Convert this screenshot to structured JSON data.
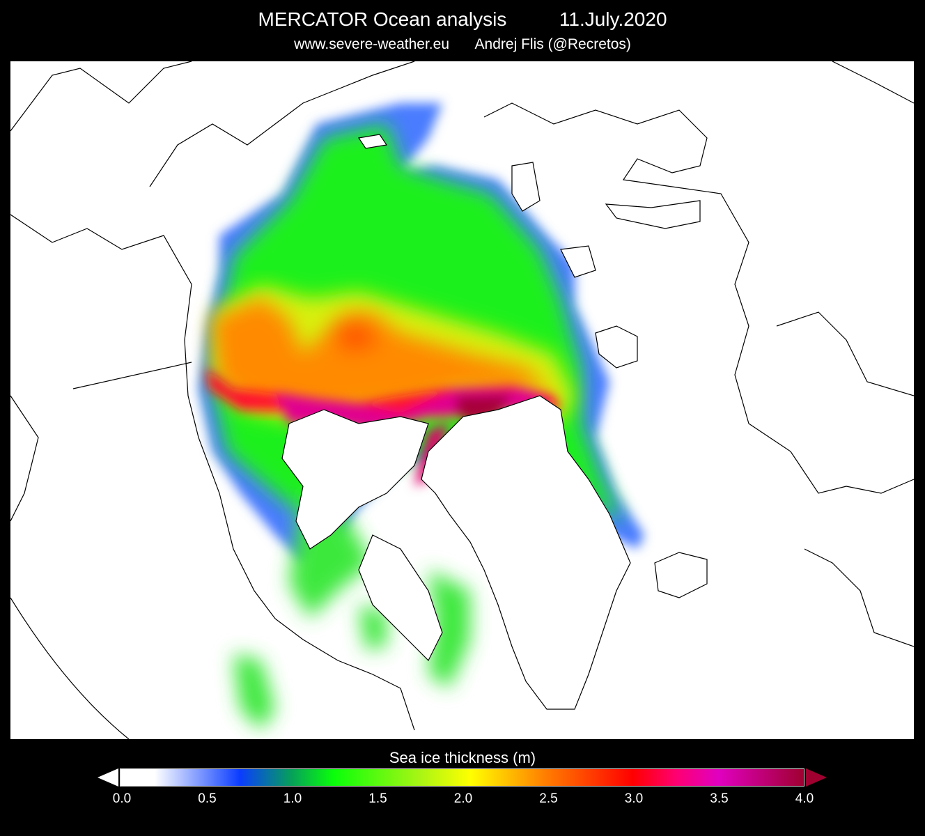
{
  "header": {
    "title": "MERCATOR Ocean analysis",
    "date": "11.July.2020",
    "website": "www.severe-weather.eu",
    "author": "Andrej Flis (@Recretos)"
  },
  "map": {
    "variable": "Sea ice thickness",
    "projection": "north polar stereographic",
    "background_color": "#ffffff",
    "coastline_color": "#000000"
  },
  "colorbar": {
    "label": "Sea ice thickness (m)",
    "min": 0.0,
    "max": 4.0,
    "unit": "m",
    "extend": "both",
    "tick_labels": [
      "0.0",
      "0.5",
      "1.0",
      "1.5",
      "2.0",
      "2.5",
      "3.0",
      "3.5",
      "4.0"
    ],
    "stops": [
      {
        "value": 0.0,
        "color": "#ffffff"
      },
      {
        "value": 0.2,
        "color": "#ffffff"
      },
      {
        "value": 0.7,
        "color": "#0a3cff"
      },
      {
        "value": 1.0,
        "color": "#06a05a"
      },
      {
        "value": 1.25,
        "color": "#0aff0a"
      },
      {
        "value": 1.75,
        "color": "#a8f514"
      },
      {
        "value": 2.05,
        "color": "#ffff00"
      },
      {
        "value": 2.5,
        "color": "#ff7a00"
      },
      {
        "value": 3.0,
        "color": "#ff0000"
      },
      {
        "value": 3.25,
        "color": "#ff0070"
      },
      {
        "value": 3.5,
        "color": "#e000c0"
      },
      {
        "value": 4.0,
        "color": "#a00030"
      }
    ]
  }
}
